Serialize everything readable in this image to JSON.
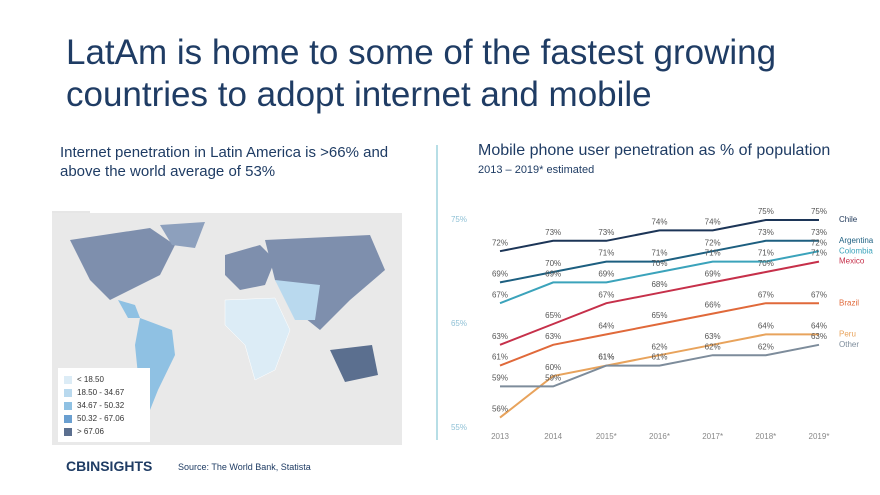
{
  "title": "LatAm is home to some of the fastest growing countries to adopt internet and mobile",
  "left_panel": {
    "subtitle": "Internet penetration in Latin America is >66% and above the world average of 53%",
    "legend": [
      {
        "label": "< 18.50",
        "color": "#dcecf6"
      },
      {
        "label": "18.50 - 34.67",
        "color": "#b9d9ee"
      },
      {
        "label": "34.67 - 50.32",
        "color": "#8fc1e3"
      },
      {
        "label": "50.32 - 67.06",
        "color": "#6a9fd0"
      },
      {
        "label": "> 67.06",
        "color": "#5b6f8f"
      }
    ]
  },
  "chart_data": {
    "type": "line",
    "title": "Mobile phone user penetration as % of population",
    "subtitle": "2013 – 2019* estimated",
    "categories": [
      "2013",
      "2014",
      "2015*",
      "2016*",
      "2017*",
      "2018*",
      "2019*"
    ],
    "ylim": [
      55,
      75
    ],
    "yticks": [
      {
        "value": 55,
        "label": "55%"
      },
      {
        "value": 65,
        "label": "65%"
      },
      {
        "value": 75,
        "label": "75%"
      }
    ],
    "grid": false,
    "series": [
      {
        "name": "Chile",
        "color": "#1c3557",
        "values": [
          72,
          73,
          73,
          74,
          74,
          75,
          75
        ],
        "value_labels": [
          "72%",
          "73%",
          "73%",
          "74%",
          "74%",
          "75%",
          "75%"
        ]
      },
      {
        "name": "Argentina",
        "color": "#1d5f80",
        "values": [
          69,
          70,
          71,
          71,
          72,
          73,
          73
        ],
        "value_labels": [
          "69%",
          "70%",
          "71%",
          "71%",
          "72%",
          "73%",
          "73%"
        ]
      },
      {
        "name": "Colombia",
        "color": "#3ba3bb",
        "values": [
          67,
          69,
          69,
          70,
          71,
          71,
          72
        ],
        "value_labels": [
          "67%",
          "69%",
          "69%",
          "70%",
          "71%",
          "71%",
          "72%"
        ]
      },
      {
        "name": "Mexico",
        "color": "#c6304a",
        "values": [
          63,
          65,
          67,
          68,
          69,
          70,
          71
        ],
        "value_labels": [
          "63%",
          "65%",
          "67%",
          "68%",
          "69%",
          "70%",
          "71%"
        ]
      },
      {
        "name": "Brazil",
        "color": "#e0693a",
        "values": [
          61,
          63,
          64,
          65,
          66,
          67,
          67
        ],
        "value_labels": [
          "61%",
          "63%",
          "64%",
          "65%",
          "66%",
          "67%",
          "67%"
        ]
      },
      {
        "name": "Peru",
        "color": "#e8a35c",
        "values": [
          56,
          60,
          61,
          62,
          63,
          64,
          64
        ],
        "value_labels": [
          "56%",
          "60%",
          "61%",
          "62%",
          "63%",
          "64%",
          "64%"
        ]
      },
      {
        "name": "Other",
        "color": "#7d8c9b",
        "values": [
          59,
          59,
          61,
          61,
          62,
          62,
          63
        ],
        "value_labels": [
          "59%",
          "59%",
          "61%",
          "61%",
          "62%",
          "62%",
          "63%"
        ]
      }
    ]
  },
  "footer": {
    "logo": "CBINSIGHTS",
    "source": "Source: The World Bank, Statista"
  }
}
